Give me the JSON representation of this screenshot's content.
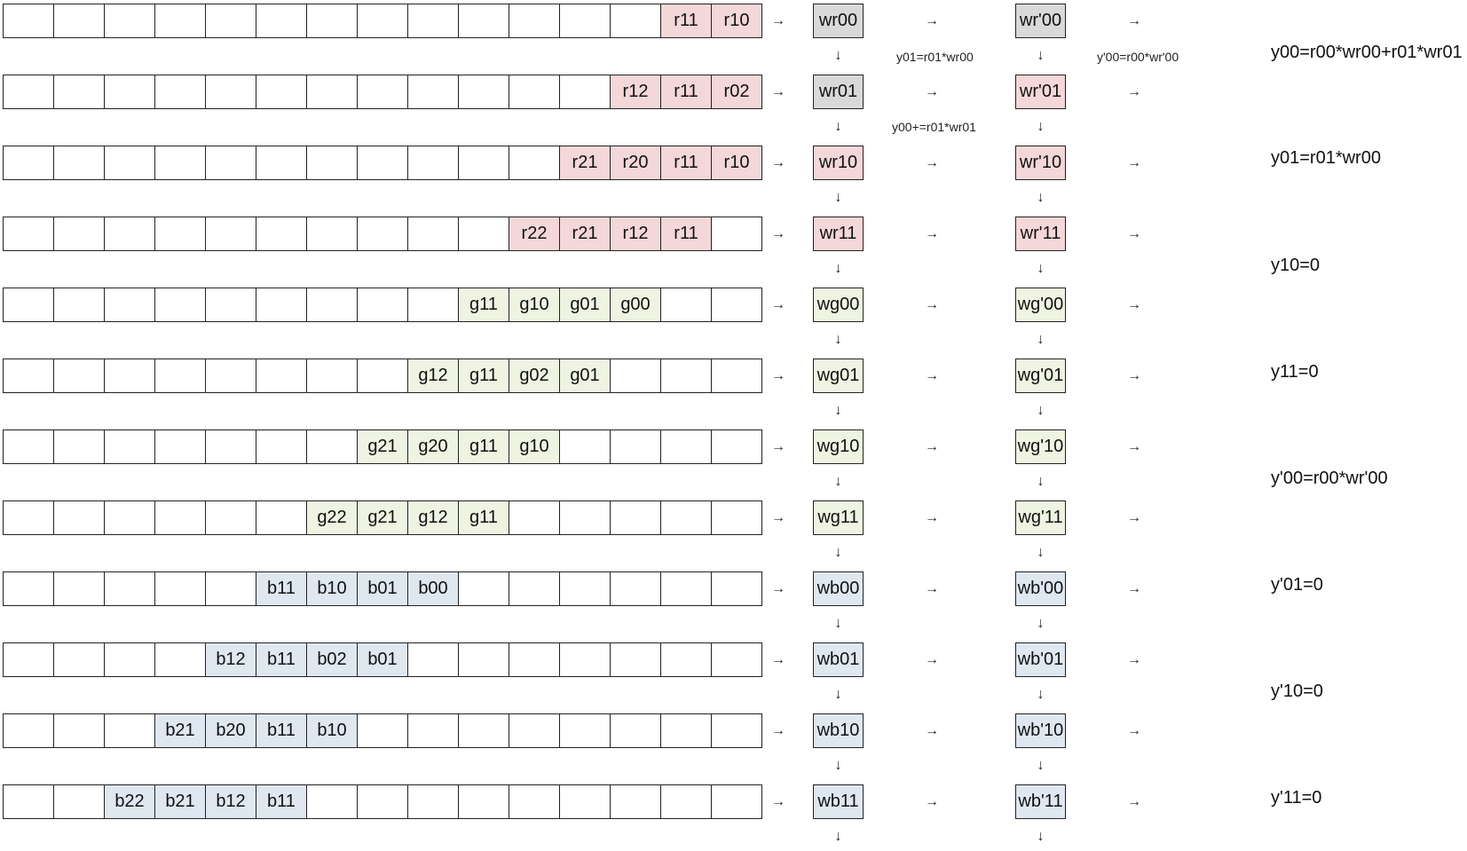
{
  "colors": {
    "red": "#f4d7d8",
    "green": "#eef3e2",
    "blue": "#dfe7f1",
    "gray": "#d9d9d9",
    "empty": "#ffffff"
  },
  "rows": [
    {
      "cells": [
        "",
        "",
        "",
        "",
        "",
        "",
        "",
        "",
        "",
        "",
        "",
        "",
        "",
        "r11",
        "r10"
      ],
      "tint": "red",
      "w": "wr00",
      "w_tint": "gray",
      "wp": "wr'00",
      "wp_tint": "gray"
    },
    {
      "cells": [
        "",
        "",
        "",
        "",
        "",
        "",
        "",
        "",
        "",
        "",
        "",
        "",
        "r12",
        "r11",
        "r02"
      ],
      "tint": "red",
      "w": "wr01",
      "w_tint": "gray",
      "wp": "wr'01",
      "wp_tint": "red"
    },
    {
      "cells": [
        "",
        "",
        "",
        "",
        "",
        "",
        "",
        "",
        "",
        "",
        "",
        "r21",
        "r20",
        "r11",
        "r10"
      ],
      "tint": "red",
      "w": "wr10",
      "w_tint": "red",
      "wp": "wr'10",
      "wp_tint": "red"
    },
    {
      "cells": [
        "",
        "",
        "",
        "",
        "",
        "",
        "",
        "",
        "",
        "",
        "r22",
        "r21",
        "r12",
        "r11",
        ""
      ],
      "tint": "red",
      "w": "wr11",
      "w_tint": "red",
      "wp": "wr'11",
      "wp_tint": "red"
    },
    {
      "cells": [
        "",
        "",
        "",
        "",
        "",
        "",
        "",
        "",
        "",
        "g11",
        "g10",
        "g01",
        "g00",
        "",
        ""
      ],
      "tint": "green",
      "w": "wg00",
      "w_tint": "green",
      "wp": "wg'00",
      "wp_tint": "green"
    },
    {
      "cells": [
        "",
        "",
        "",
        "",
        "",
        "",
        "",
        "",
        "g12",
        "g11",
        "g02",
        "g01",
        "",
        "",
        ""
      ],
      "tint": "green",
      "w": "wg01",
      "w_tint": "green",
      "wp": "wg'01",
      "wp_tint": "green"
    },
    {
      "cells": [
        "",
        "",
        "",
        "",
        "",
        "",
        "",
        "g21",
        "g20",
        "g11",
        "g10",
        "",
        "",
        "",
        ""
      ],
      "tint": "green",
      "w": "wg10",
      "w_tint": "green",
      "wp": "wg'10",
      "wp_tint": "green"
    },
    {
      "cells": [
        "",
        "",
        "",
        "",
        "",
        "",
        "g22",
        "g21",
        "g12",
        "g11",
        "",
        "",
        "",
        "",
        ""
      ],
      "tint": "green",
      "w": "wg11",
      "w_tint": "green",
      "wp": "wg'11",
      "wp_tint": "green"
    },
    {
      "cells": [
        "",
        "",
        "",
        "",
        "",
        "b11",
        "b10",
        "b01",
        "b00",
        "",
        "",
        "",
        "",
        "",
        ""
      ],
      "tint": "blue",
      "w": "wb00",
      "w_tint": "blue",
      "wp": "wb'00",
      "wp_tint": "blue"
    },
    {
      "cells": [
        "",
        "",
        "",
        "",
        "b12",
        "b11",
        "b02",
        "b01",
        "",
        "",
        "",
        "",
        "",
        "",
        ""
      ],
      "tint": "blue",
      "w": "wb01",
      "w_tint": "blue",
      "wp": "wb'01",
      "wp_tint": "blue"
    },
    {
      "cells": [
        "",
        "",
        "",
        "b21",
        "b20",
        "b11",
        "b10",
        "",
        "",
        "",
        "",
        "",
        "",
        "",
        ""
      ],
      "tint": "blue",
      "w": "wb10",
      "w_tint": "blue",
      "wp": "wb'10",
      "wp_tint": "blue"
    },
    {
      "cells": [
        "",
        "",
        "b22",
        "b21",
        "b12",
        "b11",
        "",
        "",
        "",
        "",
        "",
        "",
        "",
        "",
        ""
      ],
      "tint": "blue",
      "w": "wb11",
      "w_tint": "blue",
      "wp": "wb'11",
      "wp_tint": "blue"
    }
  ],
  "arrows": {
    "right": "→",
    "down": "↓"
  },
  "notes": [
    "y01=r01*wr00",
    "y'00=r00*wr'00",
    "y00+=r01*wr01"
  ],
  "side_labels": [
    "y00=r00*wr00+r01*wr01",
    "y01=r01*wr00",
    "y10=0",
    "y11=0",
    "y'00=r00*wr'00",
    "y'01=0",
    "y'10=0",
    "y'11=0"
  ]
}
